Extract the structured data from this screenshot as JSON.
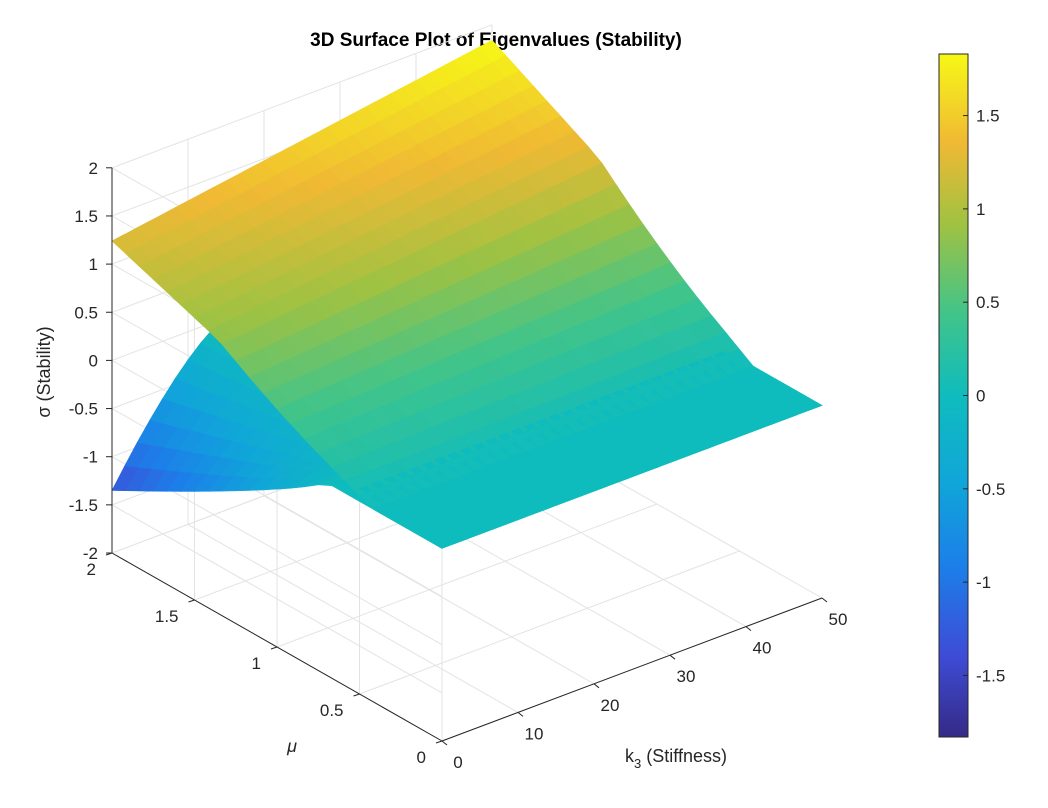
{
  "chart_data": {
    "type": "surface",
    "title": "3D Surface Plot of Eigenvalues (Stability)",
    "xlabel": {
      "main": "k",
      "sub": "3",
      "rest": " (Stiffness)"
    },
    "ylabel": "μ",
    "zlabel": "σ (Stability)",
    "xlim": [
      0,
      50
    ],
    "ylim": [
      0,
      2
    ],
    "zlim": [
      -2,
      2
    ],
    "x_ticks": [
      0,
      10,
      20,
      30,
      40,
      50
    ],
    "x_tick_labels": [
      "0",
      "10",
      "20",
      "30",
      "40",
      "50"
    ],
    "y_ticks": [
      0,
      0.5,
      1,
      1.5,
      2
    ],
    "y_tick_labels": [
      "0",
      "0.5",
      "1",
      "1.5",
      "2"
    ],
    "z_ticks": [
      -2,
      -1.5,
      -1,
      -0.5,
      0,
      0.5,
      1,
      1.5,
      2
    ],
    "z_tick_labels": [
      "-2",
      "-1.5",
      "-1",
      "-0.5",
      "0",
      "0.5",
      "1",
      "1.5",
      "2"
    ],
    "grid": true,
    "colormap": "parula",
    "colorbar": {
      "clim": [
        -1.83,
        1.83
      ],
      "ticks": [
        -1.5,
        -1,
        -0.5,
        0,
        0.5,
        1,
        1.5
      ],
      "tick_labels": [
        "-1.5",
        "-1",
        "-0.5",
        "0",
        "0.5",
        "1",
        "1.5"
      ]
    },
    "surface_function": "sigma = Re(-mu + sqrt(mu^2 - 4*(1 + k3*s^2)))/2 (upper branch) and lower branch where mu^2 exceeds stiffness; flat at 0 otherwise",
    "surface_samples": {
      "k3_values": [
        0,
        10,
        20,
        30,
        40,
        50
      ],
      "mu_values": [
        0,
        0.5,
        1,
        1.5,
        2
      ],
      "sigma_upper_at_mu2": [
        1.25,
        1.5,
        1.6,
        1.7,
        1.75,
        1.8
      ],
      "sigma_lower_at_mu2_k0": -1.35
    }
  }
}
